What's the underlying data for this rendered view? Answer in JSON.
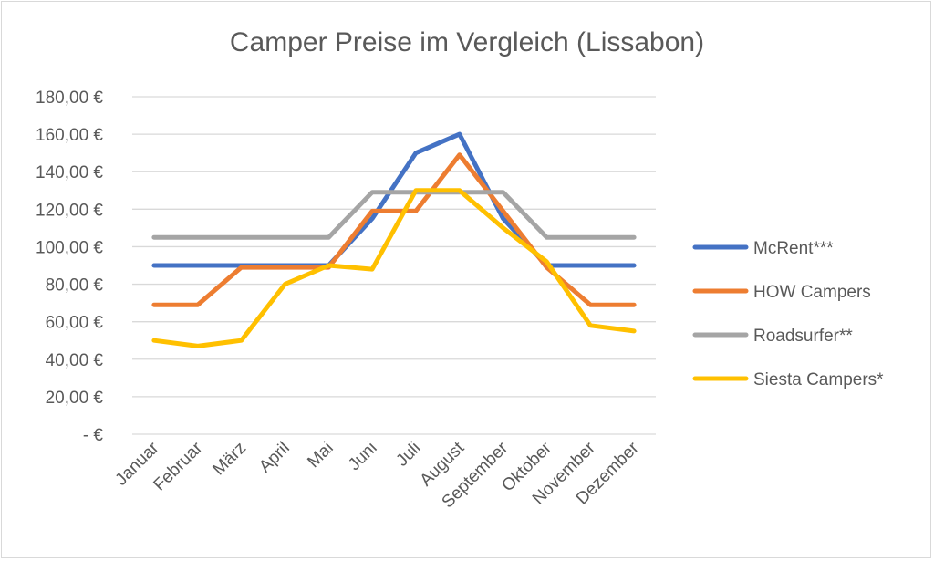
{
  "chart_data": {
    "type": "line",
    "title": "Camper Preise im Vergleich (Lissabon)",
    "xlabel": "",
    "ylabel": "",
    "categories": [
      "Januar",
      "Februar",
      "März",
      "April",
      "Mai",
      "Juni",
      "Juli",
      "August",
      "September",
      "Oktober",
      "November",
      "Dezember"
    ],
    "ylim": [
      0,
      180
    ],
    "yticks": [
      0,
      20,
      40,
      60,
      80,
      100,
      120,
      140,
      160,
      180
    ],
    "ytick_labels": [
      "-   €",
      "20,00 €",
      "40,00 €",
      "60,00 €",
      "80,00 €",
      "100,00 €",
      "120,00 €",
      "140,00 €",
      "160,00 €",
      "180,00 €"
    ],
    "grid": true,
    "legend_position": "right",
    "series": [
      {
        "name": "McRent***",
        "color": "#4472C4",
        "values": [
          90,
          90,
          90,
          90,
          90,
          115,
          150,
          160,
          115,
          90,
          90,
          90
        ]
      },
      {
        "name": "HOW Campers",
        "color": "#ED7D31",
        "values": [
          69,
          69,
          89,
          89,
          89,
          119,
          119,
          149,
          119,
          89,
          69,
          69
        ]
      },
      {
        "name": "Roadsurfer**",
        "color": "#A5A5A5",
        "values": [
          105,
          105,
          105,
          105,
          105,
          129,
          129,
          129,
          129,
          105,
          105,
          105
        ]
      },
      {
        "name": "Siesta Campers*",
        "color": "#FFC000",
        "values": [
          50,
          47,
          50,
          80,
          90,
          88,
          130,
          130,
          110,
          92,
          58,
          55
        ]
      }
    ]
  }
}
